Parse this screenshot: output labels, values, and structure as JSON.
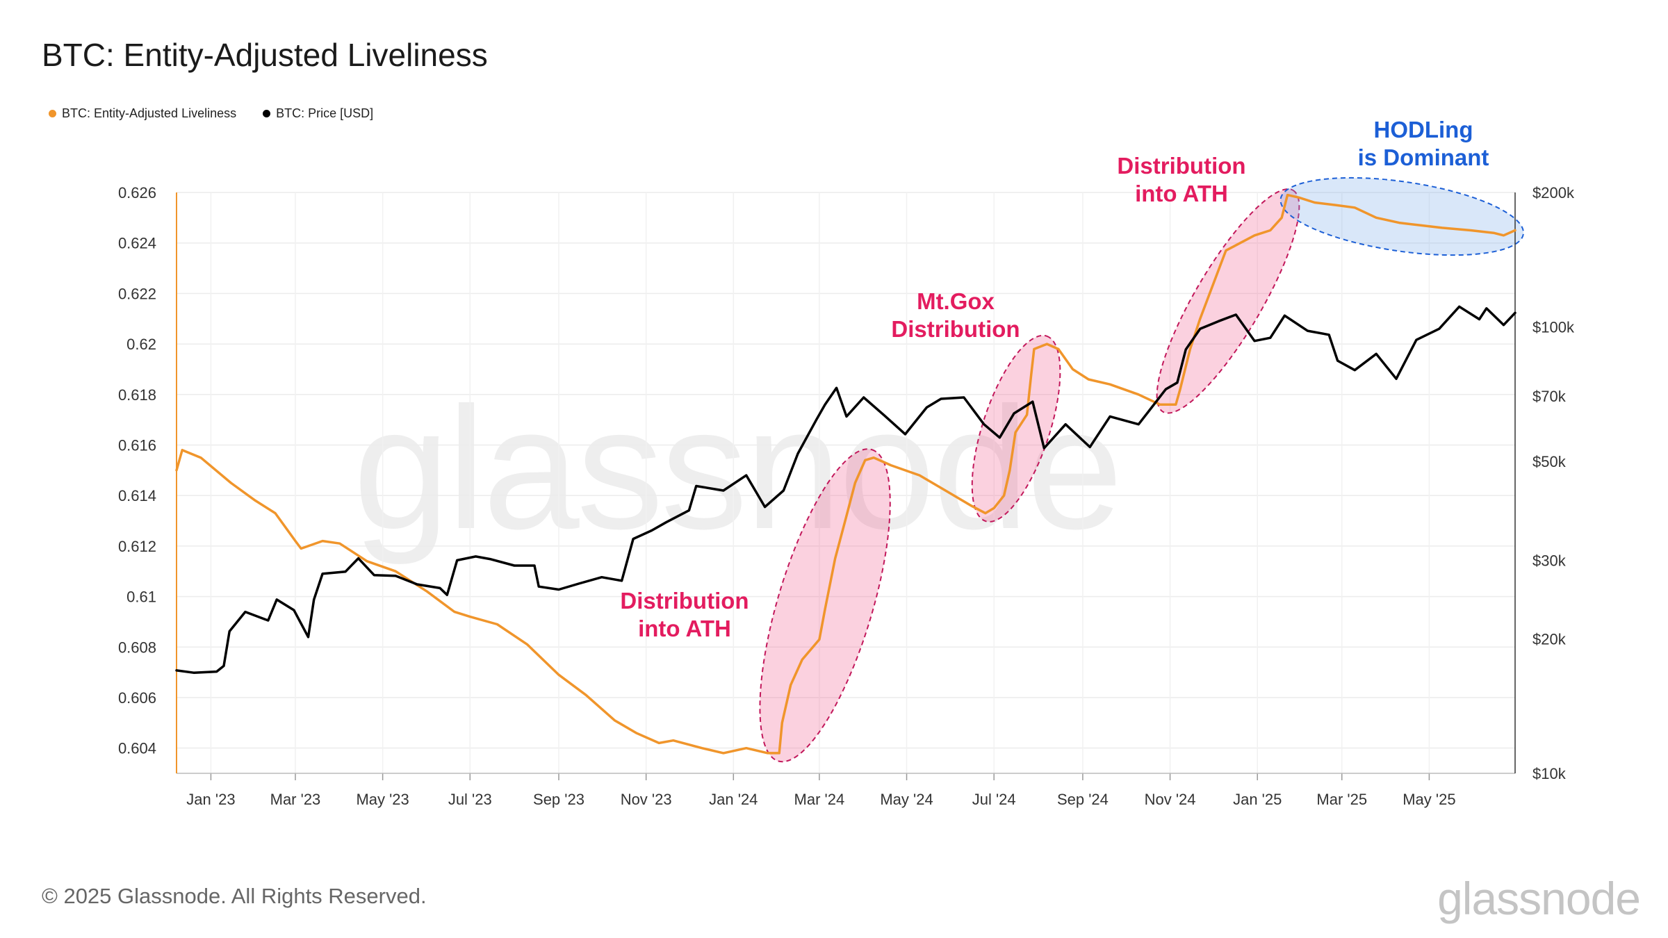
{
  "title": "BTC: Entity-Adjusted Liveliness",
  "legend": [
    {
      "label": "BTC: Entity-Adjusted Liveliness",
      "color": "#f0952b"
    },
    {
      "label": "BTC: Price [USD]",
      "color": "#000000"
    }
  ],
  "footer": {
    "copyright": "© 2025 Glassnode. All Rights Reserved.",
    "logo": "glassnode",
    "watermark": "glassnode"
  },
  "chart_data": {
    "type": "line",
    "x_ticks": [
      "Jan '23",
      "Mar '23",
      "May '23",
      "Jul '23",
      "Sep '23",
      "Nov '23",
      "Jan '24",
      "Mar '24",
      "May '24",
      "Jul '24",
      "Sep '24",
      "Nov '24",
      "Jan '25",
      "Mar '25",
      "May '25"
    ],
    "x_tick_dates": [
      "2023-01-01",
      "2023-03-01",
      "2023-05-01",
      "2023-07-01",
      "2023-09-01",
      "2023-11-01",
      "2024-01-01",
      "2024-03-01",
      "2024-05-01",
      "2024-07-01",
      "2024-09-01",
      "2024-11-01",
      "2025-01-01",
      "2025-03-01",
      "2025-05-01"
    ],
    "x_range": [
      "2022-12-08",
      "2025-06-30"
    ],
    "y_left": {
      "ticks": [
        "0.626",
        "0.624",
        "0.622",
        "0.62",
        "0.618",
        "0.616",
        "0.614",
        "0.612",
        "0.61",
        "0.608",
        "0.606",
        "0.604"
      ],
      "range": [
        0.603,
        0.626
      ]
    },
    "y_right": {
      "scale": "log",
      "ticks": [
        "$200k",
        "$100k",
        "$70k",
        "$50k",
        "$30k",
        "$20k",
        "$10k"
      ],
      "tick_values": [
        200000,
        100000,
        70000,
        50000,
        30000,
        20000,
        10000
      ],
      "range": [
        10000,
        200000
      ]
    },
    "series": [
      {
        "name": "BTC: Entity-Adjusted Liveliness",
        "axis": "left",
        "color": "#f0952b",
        "points": [
          [
            "2022-12-08",
            0.615
          ],
          [
            "2022-12-12",
            0.6158
          ],
          [
            "2022-12-25",
            0.6155
          ],
          [
            "2023-01-15",
            0.6145
          ],
          [
            "2023-02-01",
            0.6138
          ],
          [
            "2023-02-15",
            0.6133
          ],
          [
            "2023-03-01",
            0.6122
          ],
          [
            "2023-03-05",
            0.6119
          ],
          [
            "2023-03-20",
            0.6122
          ],
          [
            "2023-04-01",
            0.6121
          ],
          [
            "2023-04-20",
            0.6114
          ],
          [
            "2023-05-10",
            0.611
          ],
          [
            "2023-06-01",
            0.6102
          ],
          [
            "2023-06-20",
            0.6094
          ],
          [
            "2023-07-01",
            0.6092
          ],
          [
            "2023-07-20",
            0.6089
          ],
          [
            "2023-08-10",
            0.6081
          ],
          [
            "2023-09-01",
            0.6069
          ],
          [
            "2023-09-20",
            0.6061
          ],
          [
            "2023-10-10",
            0.6051
          ],
          [
            "2023-10-25",
            0.6046
          ],
          [
            "2023-11-10",
            0.6042
          ],
          [
            "2023-11-20",
            0.6043
          ],
          [
            "2023-12-10",
            0.604
          ],
          [
            "2023-12-25",
            0.6038
          ],
          [
            "2024-01-10",
            0.604
          ],
          [
            "2024-01-25",
            0.6038
          ],
          [
            "2024-02-02",
            0.6038
          ],
          [
            "2024-02-04",
            0.605
          ],
          [
            "2024-02-10",
            0.6065
          ],
          [
            "2024-02-18",
            0.6075
          ],
          [
            "2024-03-01",
            0.6083
          ],
          [
            "2024-03-05",
            0.6095
          ],
          [
            "2024-03-12",
            0.6115
          ],
          [
            "2024-03-20",
            0.6132
          ],
          [
            "2024-03-26",
            0.6145
          ],
          [
            "2024-04-02",
            0.6154
          ],
          [
            "2024-04-08",
            0.6155
          ],
          [
            "2024-04-20",
            0.6152
          ],
          [
            "2024-05-10",
            0.6148
          ],
          [
            "2024-05-28",
            0.6142
          ],
          [
            "2024-06-15",
            0.6136
          ],
          [
            "2024-06-25",
            0.6133
          ],
          [
            "2024-07-01",
            0.6135
          ],
          [
            "2024-07-08",
            0.614
          ],
          [
            "2024-07-12",
            0.615
          ],
          [
            "2024-07-16",
            0.6165
          ],
          [
            "2024-07-24",
            0.6172
          ],
          [
            "2024-07-27",
            0.6188
          ],
          [
            "2024-07-29",
            0.6198
          ],
          [
            "2024-08-07",
            0.62
          ],
          [
            "2024-08-15",
            0.6198
          ],
          [
            "2024-08-25",
            0.619
          ],
          [
            "2024-09-05",
            0.6186
          ],
          [
            "2024-09-20",
            0.6184
          ],
          [
            "2024-10-10",
            0.618
          ],
          [
            "2024-10-25",
            0.6176
          ],
          [
            "2024-11-05",
            0.6176
          ],
          [
            "2024-11-08",
            0.6182
          ],
          [
            "2024-11-15",
            0.6198
          ],
          [
            "2024-11-22",
            0.621
          ],
          [
            "2024-12-02",
            0.6225
          ],
          [
            "2024-12-10",
            0.6237
          ],
          [
            "2024-12-20",
            0.624
          ],
          [
            "2024-12-30",
            0.6243
          ],
          [
            "2025-01-10",
            0.6245
          ],
          [
            "2025-01-18",
            0.625
          ],
          [
            "2025-01-22",
            0.6259
          ],
          [
            "2025-01-30",
            0.6258
          ],
          [
            "2025-02-10",
            0.6256
          ],
          [
            "2025-02-25",
            0.6255
          ],
          [
            "2025-03-10",
            0.6254
          ],
          [
            "2025-03-25",
            0.625
          ],
          [
            "2025-04-10",
            0.6248
          ],
          [
            "2025-04-25",
            0.6247
          ],
          [
            "2025-05-10",
            0.6246
          ],
          [
            "2025-05-30",
            0.6245
          ],
          [
            "2025-06-15",
            0.6244
          ],
          [
            "2025-06-22",
            0.6243
          ],
          [
            "2025-06-30",
            0.6245
          ]
        ]
      },
      {
        "name": "BTC: Price [USD]",
        "axis": "right",
        "color": "#000000",
        "points": [
          [
            "2022-12-08",
            17000
          ],
          [
            "2022-12-20",
            16800
          ],
          [
            "2023-01-05",
            16900
          ],
          [
            "2023-01-10",
            17400
          ],
          [
            "2023-01-14",
            20800
          ],
          [
            "2023-01-25",
            23000
          ],
          [
            "2023-02-10",
            22000
          ],
          [
            "2023-02-16",
            24500
          ],
          [
            "2023-02-28",
            23200
          ],
          [
            "2023-03-10",
            20200
          ],
          [
            "2023-03-14",
            24500
          ],
          [
            "2023-03-20",
            28000
          ],
          [
            "2023-04-05",
            28300
          ],
          [
            "2023-04-14",
            30300
          ],
          [
            "2023-04-25",
            27800
          ],
          [
            "2023-05-10",
            27700
          ],
          [
            "2023-05-25",
            26500
          ],
          [
            "2023-06-10",
            26000
          ],
          [
            "2023-06-15",
            25100
          ],
          [
            "2023-06-22",
            30000
          ],
          [
            "2023-07-05",
            30600
          ],
          [
            "2023-07-15",
            30200
          ],
          [
            "2023-08-01",
            29200
          ],
          [
            "2023-08-15",
            29200
          ],
          [
            "2023-08-18",
            26200
          ],
          [
            "2023-09-01",
            25800
          ],
          [
            "2023-09-15",
            26600
          ],
          [
            "2023-10-01",
            27500
          ],
          [
            "2023-10-15",
            27000
          ],
          [
            "2023-10-23",
            33500
          ],
          [
            "2023-11-05",
            35000
          ],
          [
            "2023-11-15",
            36500
          ],
          [
            "2023-12-01",
            38800
          ],
          [
            "2023-12-06",
            44000
          ],
          [
            "2023-12-25",
            43000
          ],
          [
            "2024-01-10",
            46500
          ],
          [
            "2024-01-23",
            39500
          ],
          [
            "2024-02-05",
            43000
          ],
          [
            "2024-02-15",
            52000
          ],
          [
            "2024-02-28",
            62000
          ],
          [
            "2024-03-05",
            67000
          ],
          [
            "2024-03-13",
            73000
          ],
          [
            "2024-03-20",
            63000
          ],
          [
            "2024-04-01",
            69500
          ],
          [
            "2024-04-15",
            63500
          ],
          [
            "2024-04-30",
            57500
          ],
          [
            "2024-05-15",
            66000
          ],
          [
            "2024-05-25",
            69000
          ],
          [
            "2024-06-10",
            69500
          ],
          [
            "2024-06-24",
            60500
          ],
          [
            "2024-07-05",
            56500
          ],
          [
            "2024-07-15",
            64000
          ],
          [
            "2024-07-28",
            68000
          ],
          [
            "2024-08-05",
            53500
          ],
          [
            "2024-08-20",
            60500
          ],
          [
            "2024-09-06",
            53800
          ],
          [
            "2024-09-20",
            63000
          ],
          [
            "2024-10-10",
            60500
          ],
          [
            "2024-10-29",
            72500
          ],
          [
            "2024-11-06",
            75000
          ],
          [
            "2024-11-12",
            89000
          ],
          [
            "2024-11-22",
            99000
          ],
          [
            "2024-12-05",
            103000
          ],
          [
            "2024-12-17",
            106500
          ],
          [
            "2024-12-30",
            93000
          ],
          [
            "2025-01-10",
            94500
          ],
          [
            "2025-01-20",
            106000
          ],
          [
            "2025-02-05",
            98000
          ],
          [
            "2025-02-20",
            96000
          ],
          [
            "2025-02-26",
            84000
          ],
          [
            "2025-03-10",
            80000
          ],
          [
            "2025-03-25",
            87000
          ],
          [
            "2025-04-08",
            76500
          ],
          [
            "2025-04-22",
            93500
          ],
          [
            "2025-05-08",
            99000
          ],
          [
            "2025-05-22",
            111000
          ],
          [
            "2025-06-05",
            104000
          ],
          [
            "2025-06-10",
            110000
          ],
          [
            "2025-06-22",
            101000
          ],
          [
            "2025-06-30",
            107500
          ]
        ]
      }
    ],
    "annotations": [
      {
        "text": [
          "Distribution",
          "into ATH"
        ],
        "color": "#e31c5f"
      },
      {
        "text": [
          "Mt.Gox",
          "Distribution"
        ],
        "color": "#e31c5f"
      },
      {
        "text": [
          "Distribution",
          "into ATH"
        ],
        "color": "#e31c5f"
      },
      {
        "text": [
          "HODLing",
          "is Dominant"
        ],
        "color": "#1c5fd6"
      }
    ]
  }
}
